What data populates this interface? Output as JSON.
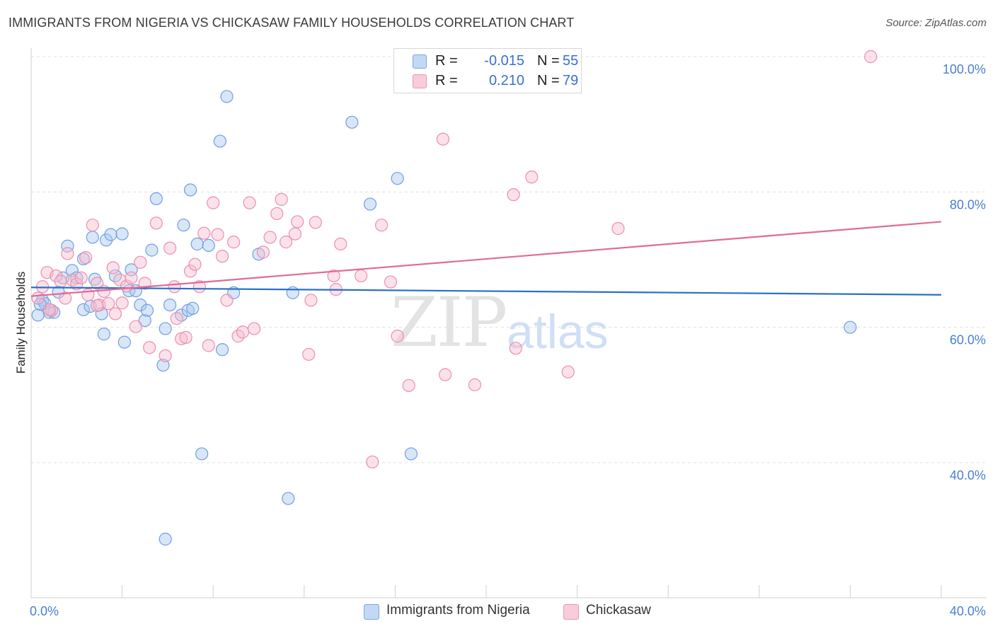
{
  "header": {
    "title": "IMMIGRANTS FROM NIGERIA VS CHICKASAW FAMILY HOUSEHOLDS CORRELATION CHART",
    "source": "Source: ZipAtlas.com"
  },
  "legend": {
    "series1": {
      "r_label": "R =",
      "r_value": "-0.015",
      "n_label": "N =",
      "n_value": "55"
    },
    "series2": {
      "r_label": "R =",
      "r_value": "0.210",
      "n_label": "N =",
      "n_value": "79"
    }
  },
  "bottom_legend": {
    "series1": "Immigrants from Nigeria",
    "series2": "Chickasaw"
  },
  "watermark": {
    "zip": "ZIP",
    "atlas": "atlas"
  },
  "colors": {
    "blue_fill": "#a9c8f0",
    "blue_stroke": "#6f9fe0",
    "blue_line": "#2a6fc8",
    "pink_fill": "#f7bdd0",
    "pink_stroke": "#ea8fae",
    "pink_line": "#e26a96",
    "tick_text": "#4a7fd0",
    "grid": "#e0e0e0"
  },
  "chart_data": {
    "type": "scatter",
    "title": "IMMIGRANTS FROM NIGERIA VS CHICKASAW FAMILY HOUSEHOLDS CORRELATION CHART",
    "xlabel": "",
    "ylabel": "Family Households",
    "xlim": [
      0,
      40
    ],
    "ylim": [
      20,
      102
    ],
    "x_tick_labels": [
      "0.0%",
      "40.0%"
    ],
    "y_ticks": [
      40,
      60,
      80,
      100
    ],
    "y_tick_labels": [
      "40.0%",
      "60.0%",
      "80.0%",
      "100.0%"
    ],
    "grid": true,
    "series": [
      {
        "name": "Immigrants from Nigeria",
        "trend": [
          [
            0,
            65.9
          ],
          [
            40,
            64.8
          ]
        ],
        "points": [
          [
            0.3,
            61.8
          ],
          [
            0.5,
            64.0
          ],
          [
            0.6,
            63.5
          ],
          [
            0.8,
            62.2
          ],
          [
            1.2,
            65.2
          ],
          [
            1.4,
            67.3
          ],
          [
            1.6,
            72.0
          ],
          [
            1.8,
            68.4
          ],
          [
            2.0,
            67.3
          ],
          [
            2.3,
            62.6
          ],
          [
            2.3,
            70.1
          ],
          [
            2.6,
            63.1
          ],
          [
            2.7,
            73.3
          ],
          [
            2.8,
            67.1
          ],
          [
            3.1,
            62.0
          ],
          [
            3.2,
            59.0
          ],
          [
            3.3,
            72.9
          ],
          [
            3.5,
            73.7
          ],
          [
            3.7,
            67.6
          ],
          [
            4.0,
            73.8
          ],
          [
            4.1,
            57.8
          ],
          [
            4.3,
            65.4
          ],
          [
            4.4,
            68.5
          ],
          [
            4.6,
            65.4
          ],
          [
            4.8,
            63.3
          ],
          [
            5.0,
            61.0
          ],
          [
            5.1,
            62.5
          ],
          [
            5.3,
            71.4
          ],
          [
            5.5,
            79.0
          ],
          [
            5.8,
            54.4
          ],
          [
            5.9,
            59.8
          ],
          [
            6.1,
            63.3
          ],
          [
            6.6,
            61.8
          ],
          [
            6.7,
            75.1
          ],
          [
            6.9,
            62.5
          ],
          [
            7.0,
            80.3
          ],
          [
            7.1,
            62.8
          ],
          [
            7.3,
            72.3
          ],
          [
            7.5,
            41.3
          ],
          [
            7.8,
            72.1
          ],
          [
            8.3,
            87.5
          ],
          [
            8.4,
            56.7
          ],
          [
            8.6,
            94.1
          ],
          [
            8.9,
            65.1
          ],
          [
            10.0,
            70.8
          ],
          [
            11.3,
            34.7
          ],
          [
            11.5,
            65.1
          ],
          [
            14.1,
            90.3
          ],
          [
            14.9,
            78.2
          ],
          [
            16.1,
            82.0
          ],
          [
            16.7,
            41.3
          ],
          [
            36.0,
            60.0
          ],
          [
            5.9,
            28.7
          ],
          [
            1.0,
            62.2
          ],
          [
            0.4,
            63.4
          ]
        ]
      },
      {
        "name": "Chickasaw",
        "trend": [
          [
            0,
            64.6
          ],
          [
            40,
            75.6
          ]
        ],
        "points": [
          [
            0.3,
            64.3
          ],
          [
            0.5,
            66.0
          ],
          [
            0.7,
            68.1
          ],
          [
            0.9,
            62.5
          ],
          [
            1.1,
            67.6
          ],
          [
            1.3,
            66.8
          ],
          [
            1.6,
            70.9
          ],
          [
            1.8,
            67.0
          ],
          [
            2.0,
            66.4
          ],
          [
            2.2,
            67.3
          ],
          [
            2.4,
            70.3
          ],
          [
            2.5,
            64.8
          ],
          [
            2.7,
            75.1
          ],
          [
            2.9,
            66.5
          ],
          [
            3.0,
            63.3
          ],
          [
            3.2,
            65.3
          ],
          [
            3.4,
            63.5
          ],
          [
            3.6,
            68.8
          ],
          [
            3.7,
            62.0
          ],
          [
            3.9,
            67.0
          ],
          [
            4.0,
            63.6
          ],
          [
            4.2,
            66.1
          ],
          [
            4.4,
            67.3
          ],
          [
            4.6,
            60.1
          ],
          [
            4.8,
            69.6
          ],
          [
            5.0,
            66.5
          ],
          [
            5.2,
            57.0
          ],
          [
            5.5,
            75.4
          ],
          [
            5.9,
            55.8
          ],
          [
            6.1,
            71.7
          ],
          [
            6.3,
            66.0
          ],
          [
            6.6,
            58.3
          ],
          [
            6.8,
            58.5
          ],
          [
            7.0,
            68.3
          ],
          [
            7.2,
            69.3
          ],
          [
            7.4,
            66.0
          ],
          [
            7.6,
            73.9
          ],
          [
            7.8,
            57.3
          ],
          [
            8.0,
            78.4
          ],
          [
            8.2,
            73.7
          ],
          [
            8.4,
            70.5
          ],
          [
            8.6,
            64.0
          ],
          [
            8.9,
            72.6
          ],
          [
            9.1,
            58.7
          ],
          [
            9.3,
            59.3
          ],
          [
            9.6,
            78.4
          ],
          [
            9.8,
            59.8
          ],
          [
            10.2,
            71.1
          ],
          [
            10.5,
            73.3
          ],
          [
            10.8,
            76.8
          ],
          [
            11.0,
            78.9
          ],
          [
            11.2,
            72.6
          ],
          [
            11.6,
            73.8
          ],
          [
            11.7,
            75.6
          ],
          [
            12.2,
            56.0
          ],
          [
            12.3,
            64.0
          ],
          [
            12.5,
            75.5
          ],
          [
            13.3,
            67.6
          ],
          [
            13.4,
            65.6
          ],
          [
            13.6,
            72.3
          ],
          [
            14.5,
            67.6
          ],
          [
            15.4,
            75.1
          ],
          [
            15.8,
            66.7
          ],
          [
            16.1,
            58.7
          ],
          [
            16.6,
            51.4
          ],
          [
            18.1,
            87.8
          ],
          [
            18.2,
            53.0
          ],
          [
            19.5,
            51.5
          ],
          [
            21.2,
            79.6
          ],
          [
            21.3,
            56.9
          ],
          [
            22.0,
            82.2
          ],
          [
            23.6,
            53.4
          ],
          [
            25.8,
            74.6
          ],
          [
            36.9,
            100.0
          ],
          [
            15.0,
            40.1
          ],
          [
            1.5,
            64.3
          ],
          [
            0.8,
            62.6
          ],
          [
            2.9,
            63.2
          ],
          [
            6.4,
            61.3
          ]
        ]
      }
    ]
  }
}
